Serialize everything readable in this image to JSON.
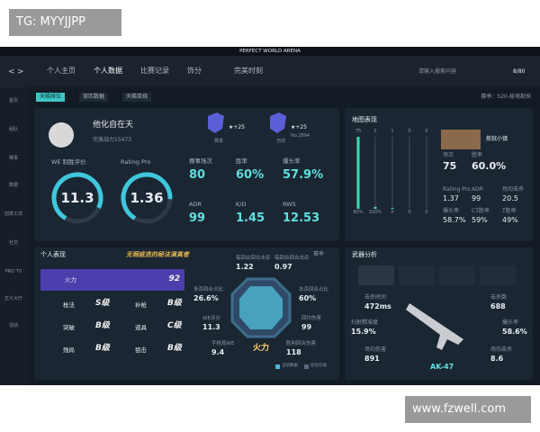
{
  "watermark": "TG: MYYJJPP",
  "footer_watermark": "www.fzwell.com",
  "app_title": "PERFECT WORLD ARENA",
  "nav": {
    "items": [
      "个人主页",
      "个人数据",
      "比赛记录",
      "饰分",
      "完美时刻"
    ],
    "active": 1,
    "search_placeholder": "请输入搜索内容",
    "currency": "8/80"
  },
  "sidebar": [
    "首页",
    "组队",
    "赛事",
    "数据",
    "创意工坊",
    "社交",
    "PRO TV",
    "正义大厅",
    "活动"
  ],
  "tabs": {
    "items": [
      "天梯排位",
      "官匹数据",
      "天梯单挑"
    ],
    "active": 0,
    "season": "赛季：S20-秘境勘探"
  },
  "profile": {
    "name": "他化自在天",
    "power": "完美战力15473",
    "badges": [
      {
        "stars": "★+25",
        "caption": "赛季"
      },
      {
        "stars": "★+25",
        "caption": "当前",
        "rank": "No.2894"
      }
    ],
    "gauges": [
      {
        "label": "WE 制胜评价",
        "value": "11.3"
      },
      {
        "label": "Rating Pro",
        "value": "1.36"
      }
    ],
    "stats": [
      {
        "label": "赛事场次",
        "value": "80"
      },
      {
        "label": "胜率",
        "value": "60%"
      },
      {
        "label": "爆头率",
        "value": "57.9%"
      },
      {
        "label": "ADR",
        "value": "99"
      },
      {
        "label": "K/D",
        "value": "1.45"
      },
      {
        "label": "RWS",
        "value": "12.53"
      }
    ]
  },
  "maps": {
    "title": "地图表现",
    "counts": [
      75,
      2,
      1,
      0,
      0
    ],
    "win_rate_labels": [
      "60%",
      "100%",
      "0",
      "0",
      "0"
    ],
    "selected": "炼狱小镇",
    "stats": [
      {
        "label": "场次",
        "value": "75"
      },
      {
        "label": "胜率",
        "value": "60.0%"
      },
      {
        "label": "Rating Pro",
        "value": "1.37"
      },
      {
        "label": "ADR",
        "value": "99"
      },
      {
        "label": "场均击杀",
        "value": "20.5"
      },
      {
        "label": "爆头率",
        "value": "58.7%"
      },
      {
        "label": "CT胜率",
        "value": "59%"
      },
      {
        "label": "T胜率",
        "value": "49%"
      }
    ]
  },
  "performance": {
    "title": "个人表现",
    "honor": "无瑕疵迭的秘法演真者",
    "season_select": "赛季",
    "main": {
      "name": "火力",
      "score": "92"
    },
    "grades": [
      {
        "name": "枪法",
        "grade": "S级"
      },
      {
        "name": "补枪",
        "grade": "B级"
      },
      {
        "name": "突破",
        "grade": "B级"
      },
      {
        "name": "道具",
        "grade": "C级"
      },
      {
        "name": "残局",
        "grade": "B级"
      },
      {
        "name": "狙击",
        "grade": "B级"
      }
    ],
    "center": "火力",
    "stats": [
      {
        "label": "每回合回合击杀",
        "value": "1.22"
      },
      {
        "label": "每回合回合击杀",
        "value": "0.97"
      },
      {
        "label": "多杀回合占比",
        "value": "26.6%"
      },
      {
        "label": "击杀回合占比",
        "value": "60%"
      },
      {
        "label": "WE评分",
        "value": "11.3"
      },
      {
        "label": "回均伤害",
        "value": "99"
      },
      {
        "label": "手枪局WE",
        "value": "9.4"
      },
      {
        "label": "胜利回合伤害",
        "value": "118"
      }
    ],
    "legend": [
      "当前数据",
      "段位均值"
    ]
  },
  "weapons": {
    "title": "武器分析",
    "selected": "AK-47",
    "stats": [
      {
        "label": "击杀时间",
        "value": "472ms"
      },
      {
        "label": "击杀数",
        "value": "688"
      },
      {
        "label": "扫射精准度",
        "value": "15.9%"
      },
      {
        "label": "爆头率",
        "value": "58.6%"
      },
      {
        "label": "场均伤害",
        "value": "891"
      },
      {
        "label": "场均击杀",
        "value": "8.6"
      }
    ]
  }
}
